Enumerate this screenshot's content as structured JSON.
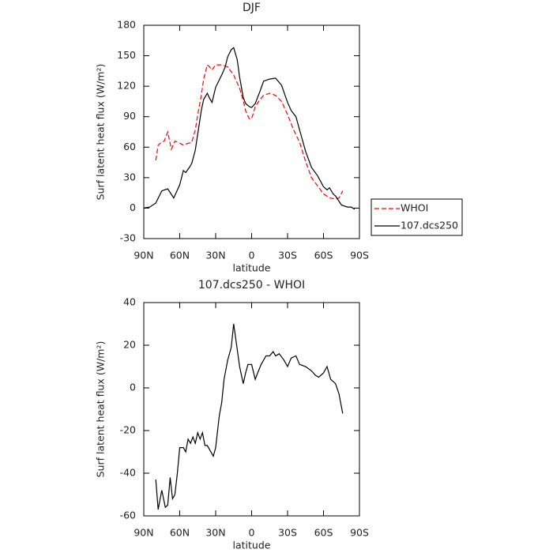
{
  "chart_data": [
    {
      "type": "line",
      "title": "DJF",
      "xlabel": "latitude",
      "ylabel": "Surf latent heat flux (W/m²)",
      "xlim": [
        90,
        -90
      ],
      "xticks": [
        {
          "value": 90,
          "label": "90N"
        },
        {
          "value": 60,
          "label": "60N"
        },
        {
          "value": 30,
          "label": "30N"
        },
        0,
        {
          "value": -30,
          "label": "30S"
        },
        {
          "value": -60,
          "label": "60S"
        },
        {
          "value": -90,
          "label": "90S"
        }
      ],
      "ylim": [
        -30,
        180
      ],
      "yticks": [
        -30,
        0,
        30,
        60,
        90,
        120,
        150,
        180
      ],
      "legend": "right",
      "series": [
        {
          "name": "WHOI",
          "color": "#ff0000",
          "style": "dashed",
          "x": [
            80,
            78,
            76,
            73,
            70,
            67,
            64,
            62,
            60,
            57,
            55,
            50,
            47,
            45,
            42,
            40,
            37,
            35,
            33,
            30,
            25,
            20,
            15,
            10,
            7,
            5,
            2,
            0,
            -3,
            -7,
            -10,
            -15,
            -20,
            -25,
            -30,
            -35,
            -40,
            -45,
            -50,
            -55,
            -60,
            -65,
            -70,
            -73,
            -76
          ],
          "values": [
            47,
            62,
            64,
            66,
            75,
            58,
            66,
            65,
            64,
            62,
            63,
            65,
            77,
            92,
            111,
            127,
            141,
            139,
            136,
            141,
            141,
            139,
            131,
            118,
            106,
            96,
            88,
            88,
            100,
            107,
            111,
            113,
            111,
            105,
            92,
            77,
            65,
            46,
            30,
            22,
            14,
            10,
            9,
            10,
            17
          ]
        },
        {
          "name": "107.dcs250",
          "color": "#000000",
          "style": "solid",
          "x": [
            90,
            85,
            80,
            75,
            70,
            65,
            60,
            57,
            55,
            52,
            50,
            47,
            45,
            42,
            40,
            37,
            35,
            33,
            30,
            25,
            22,
            20,
            17,
            15,
            12,
            10,
            7,
            5,
            2,
            0,
            -3,
            -7,
            -10,
            -15,
            -20,
            -25,
            -30,
            -33,
            -37,
            -40,
            -45,
            -50,
            -55,
            -60,
            -63,
            -65,
            -68,
            -70,
            -75,
            -80,
            -83,
            -86
          ],
          "values": [
            0,
            1,
            5,
            17,
            19,
            10,
            23,
            37,
            35,
            40,
            44,
            57,
            73,
            96,
            107,
            113,
            108,
            104,
            119,
            131,
            139,
            149,
            156,
            158,
            146,
            129,
            109,
            103,
            100,
            99,
            103,
            115,
            125,
            127,
            128,
            121,
            104,
            96,
            90,
            77,
            56,
            40,
            32,
            21,
            18,
            20,
            14,
            12,
            3,
            1,
            1,
            -1
          ]
        }
      ]
    },
    {
      "type": "line",
      "title": "107.dcs250 - WHOI",
      "xlabel": "latitude",
      "ylabel": "Surf latent heat flux (W/m²)",
      "xlim": [
        90,
        -90
      ],
      "xticks": [
        {
          "value": 90,
          "label": "90N"
        },
        {
          "value": 60,
          "label": "60N"
        },
        {
          "value": 30,
          "label": "30N"
        },
        0,
        {
          "value": -30,
          "label": "30S"
        },
        {
          "value": -60,
          "label": "60S"
        },
        {
          "value": -90,
          "label": "90S"
        }
      ],
      "ylim": [
        -60,
        40
      ],
      "yticks": [
        -60,
        -40,
        -20,
        0,
        20,
        40
      ],
      "series": [
        {
          "color": "#000000",
          "style": "solid",
          "x": [
            80,
            78,
            75,
            72,
            70,
            68,
            66,
            64,
            62,
            60,
            57,
            55,
            53,
            51,
            49,
            47,
            45,
            43,
            41,
            39,
            37,
            35,
            32,
            30,
            27,
            25,
            23,
            20,
            17,
            15,
            13,
            10,
            7,
            5,
            3,
            0,
            -3,
            -5,
            -8,
            -12,
            -15,
            -18,
            -20,
            -23,
            -27,
            -30,
            -33,
            -37,
            -40,
            -45,
            -50,
            -53,
            -56,
            -60,
            -63,
            -66,
            -70,
            -73,
            -76
          ],
          "values": [
            -43,
            -57,
            -48,
            -56,
            -55,
            -42,
            -52,
            -50,
            -40,
            -28,
            -28,
            -30,
            -24,
            -26,
            -23,
            -26,
            -21,
            -24,
            -21,
            -27,
            -27,
            -29,
            -32,
            -28,
            -13,
            -7,
            4,
            13,
            19,
            30,
            22,
            10,
            2,
            7,
            11,
            11,
            4,
            7,
            11,
            15,
            15,
            17,
            15,
            16,
            13,
            10,
            14,
            15,
            11,
            10,
            8,
            6,
            5,
            7,
            10,
            4,
            2,
            -3,
            -12
          ]
        }
      ]
    }
  ]
}
